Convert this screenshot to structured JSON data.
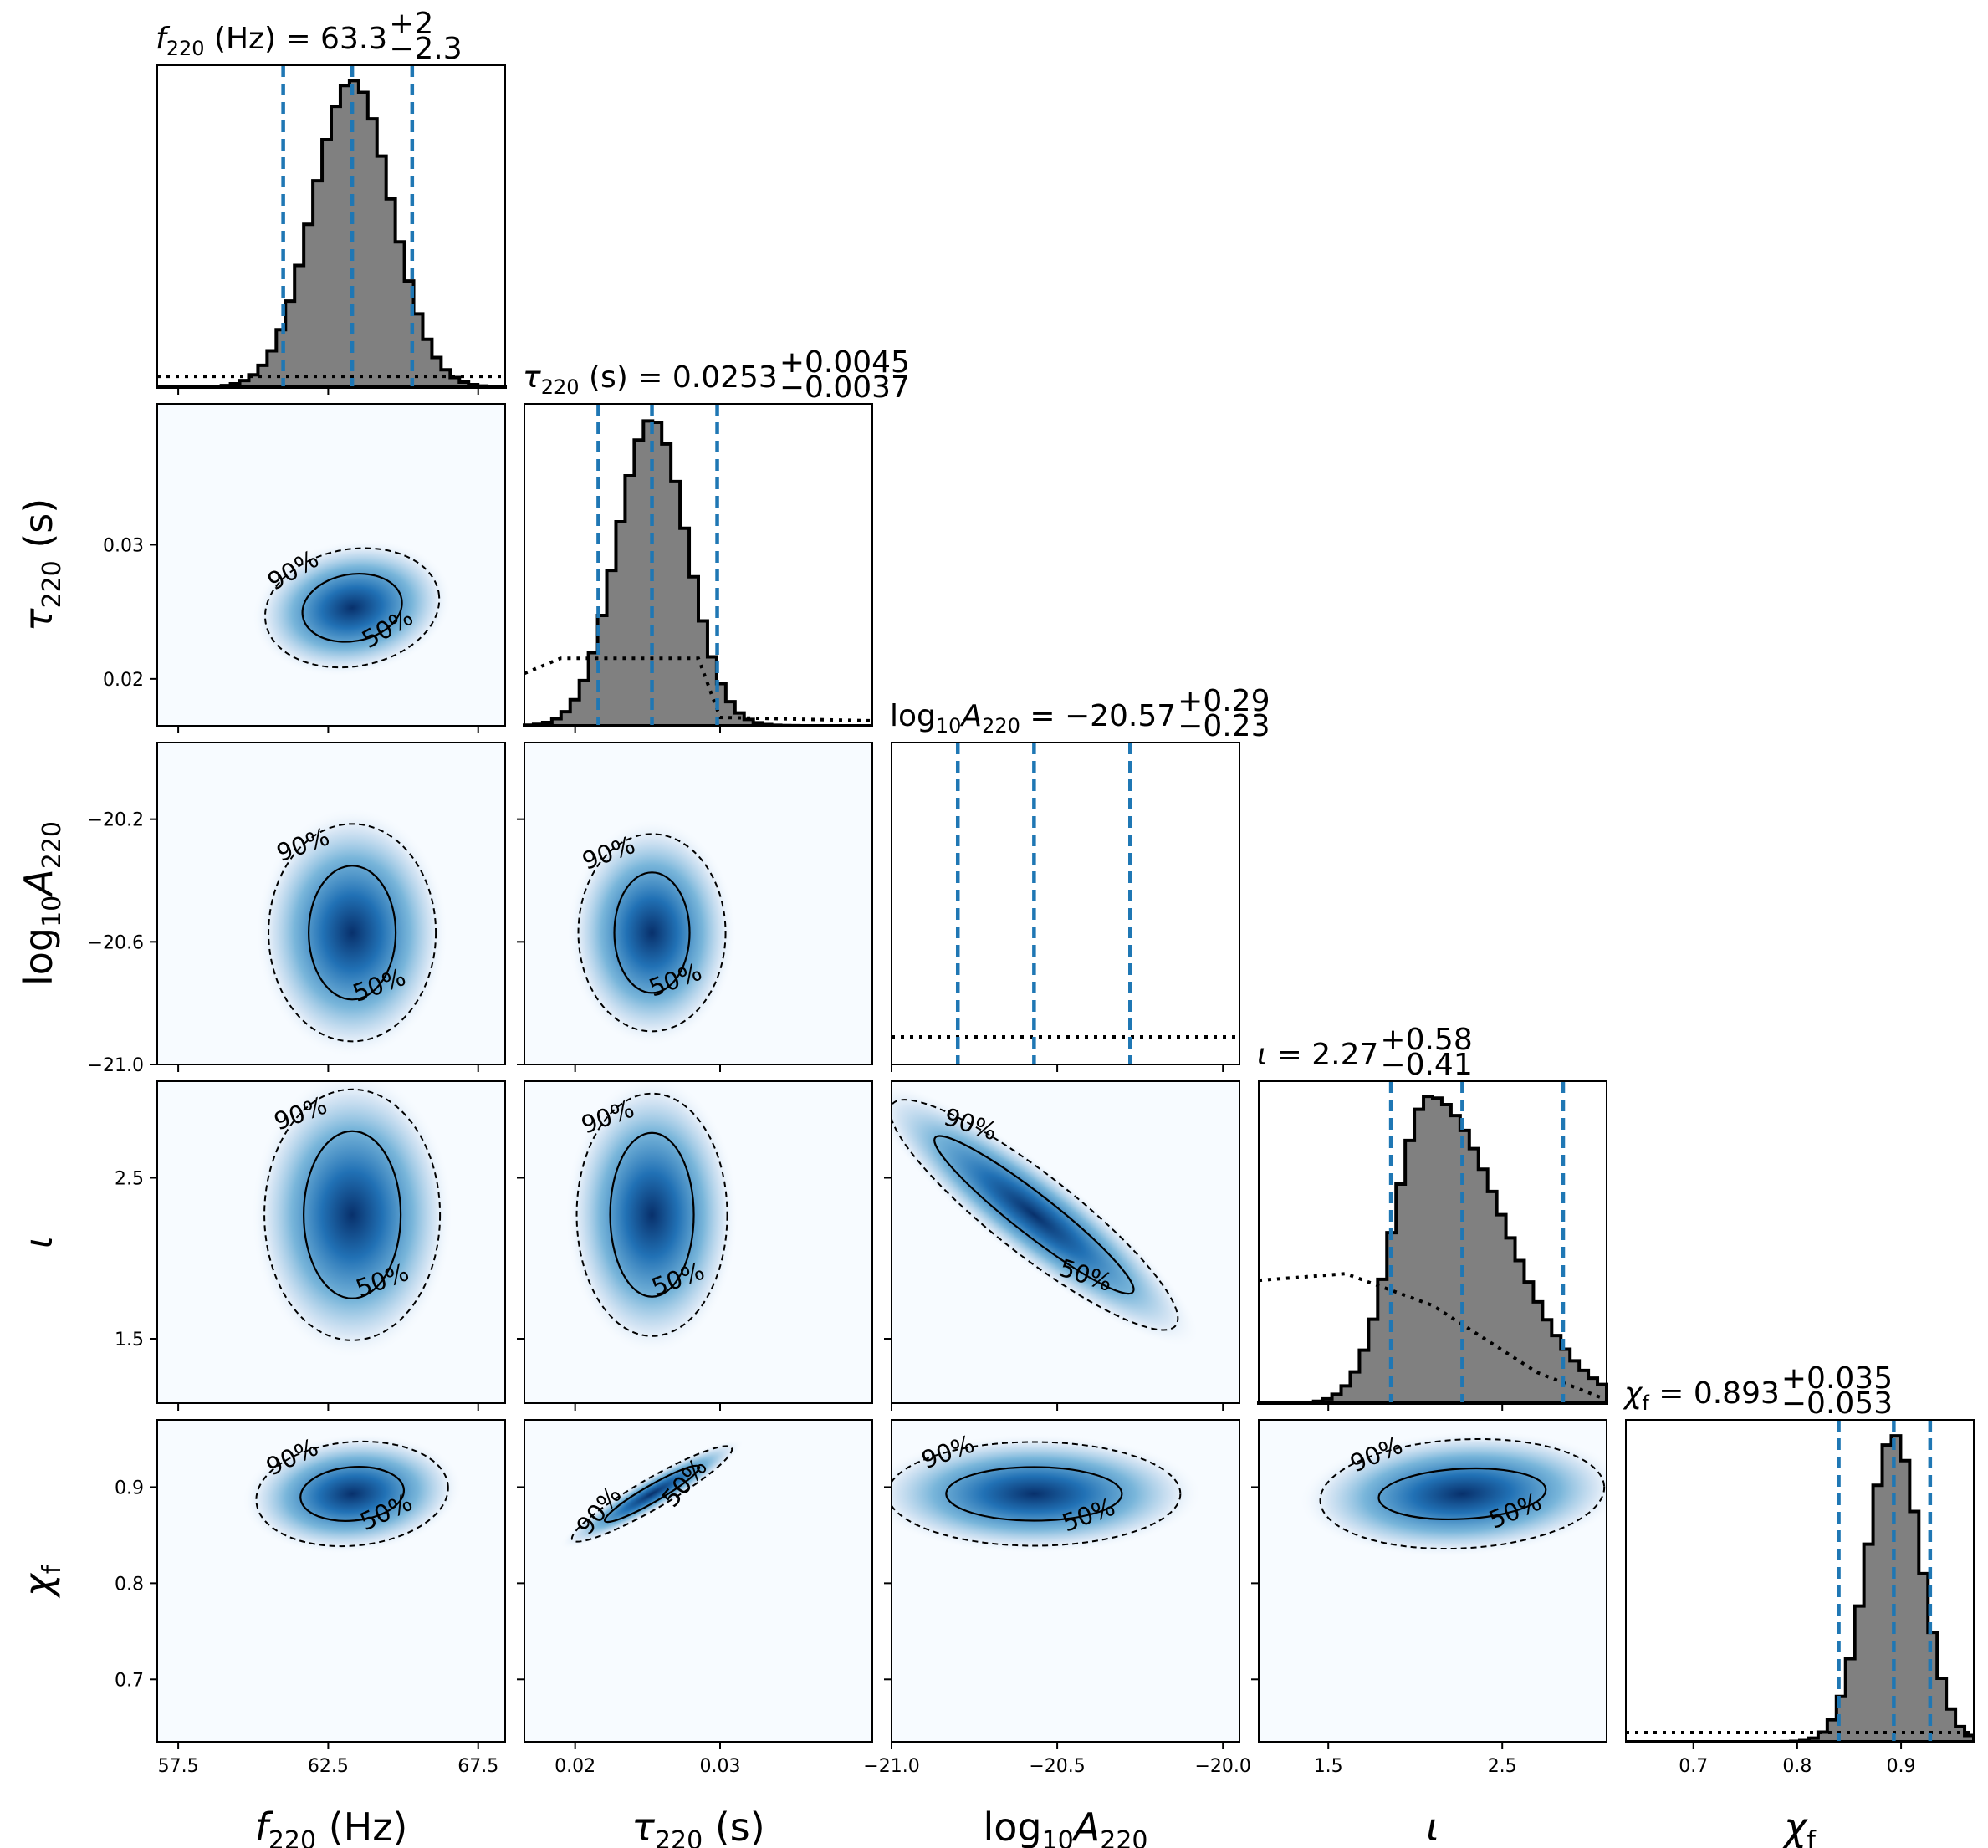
{
  "chart_data": {
    "type": "corner",
    "description": "Corner plot of posterior samples: 1D marginal histograms on the diagonal, 2D density with 50% and 90% credible contours below it",
    "colors": {
      "hist_fill": "#808080",
      "hist_edge": "#000000",
      "quantile_line": "#1f77b4",
      "density_low": "#f7fbff",
      "density_high": "#08306b",
      "contour": "#000000"
    },
    "parameters": [
      {
        "key": "f220",
        "axis_label": {
          "sym": "f",
          "sub": "220",
          "suffix": " (Hz)"
        },
        "title": {
          "sym": "f",
          "sub": "220",
          "mid": " (Hz) = ",
          "median": "63.3",
          "plus": "+2",
          "minus": "−2.3"
        },
        "range": [
          56.8,
          68.4
        ],
        "ticks": [
          57.5,
          62.5,
          67.5
        ],
        "tick_labels": [
          "57.5",
          "62.5",
          "67.5"
        ],
        "median": 63.3,
        "lower": 61.0,
        "upper": 65.3,
        "std": 1.3,
        "prior_level": 0.035
      },
      {
        "key": "tau220",
        "axis_label": {
          "sym": "τ",
          "sub": "220",
          "suffix": " (s)"
        },
        "title": {
          "sym": "τ",
          "sub": "220",
          "mid": " (s) = ",
          "median": "0.0253",
          "plus": "+0.0045",
          "minus": "−0.0037"
        },
        "range": [
          0.0165,
          0.0405
        ],
        "ticks": [
          0.02,
          0.03
        ],
        "tick_labels": [
          "0.02",
          "0.03"
        ],
        "median": 0.0253,
        "lower": 0.0216,
        "upper": 0.0298,
        "std": 0.0024,
        "prior_level": 0.22
      },
      {
        "key": "logA220",
        "axis_label": {
          "sym": "log",
          "sub": "10",
          "sym2": "A",
          "sub2": "220"
        },
        "title": {
          "sym": "log",
          "sub": "10",
          "sym2": "A",
          "sub2": "220",
          "mid": " = ",
          "median": "−20.57",
          "plus": "+0.29",
          "minus": "−0.23"
        },
        "range": [
          -21.0,
          -19.95
        ],
        "ticks": [
          -21.0,
          -20.5,
          -20.0
        ],
        "tick_labels": [
          "−21.0",
          "−20.5",
          "−20.0"
        ],
        "left_ticks": [
          -20.2,
          -20.6,
          -21.0
        ],
        "left_tick_labels": [
          "−20.2",
          "−20.6",
          "−21.0"
        ],
        "median": -20.57,
        "lower": -20.8,
        "upper": -20.28,
        "std": 0.16,
        "prior_level": 0.09
      },
      {
        "key": "iota",
        "axis_label": {
          "sym": "ι"
        },
        "title": {
          "sym": "ι",
          "mid": " = ",
          "median": "2.27",
          "plus": "+0.58",
          "minus": "−0.41"
        },
        "range": [
          1.1,
          3.1
        ],
        "ticks": [
          1.5,
          2.5
        ],
        "tick_labels": [
          "1.5",
          "2.5"
        ],
        "median": 2.27,
        "lower": 1.86,
        "upper": 2.85,
        "std": 0.3,
        "prior_level": 0.4
      },
      {
        "key": "chif",
        "axis_label": {
          "sym": "χ",
          "sub": "f"
        },
        "title": {
          "sym": "χ",
          "sub": "f",
          "mid": " = ",
          "median": "0.893",
          "plus": "+0.035",
          "minus": "−0.053"
        },
        "range": [
          0.635,
          0.97
        ],
        "ticks": [
          0.7,
          0.8,
          0.9
        ],
        "tick_labels": [
          "0.7",
          "0.8",
          "0.9"
        ],
        "median": 0.893,
        "lower": 0.84,
        "upper": 0.928,
        "std": 0.026,
        "prior_level": 0.03
      }
    ],
    "contour_labels": [
      "50%",
      "90%"
    ]
  }
}
